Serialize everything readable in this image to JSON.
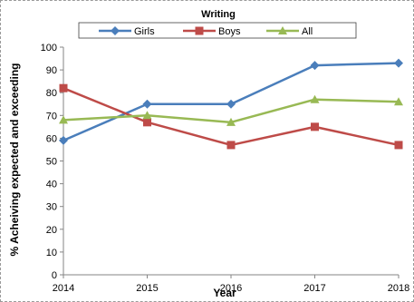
{
  "chart_data": {
    "type": "line",
    "title": "Writing",
    "xlabel": "Year",
    "ylabel": "% Acheiving expected and exceeding",
    "categories": [
      "2014",
      "2015",
      "2016",
      "2017",
      "2018"
    ],
    "ylim": [
      0,
      100
    ],
    "yticks": [
      "0",
      "10",
      "20",
      "30",
      "40",
      "50",
      "60",
      "70",
      "80",
      "90",
      "100"
    ],
    "grid": false,
    "legend_position": "top",
    "series": [
      {
        "name": "Girls",
        "color": "#4a7ebb",
        "marker": "diamond",
        "values": [
          59,
          75,
          75,
          92,
          93
        ]
      },
      {
        "name": "Boys",
        "color": "#be4b48",
        "marker": "square",
        "values": [
          82,
          67,
          57,
          65,
          57
        ]
      },
      {
        "name": "All",
        "color": "#98b954",
        "marker": "triangle",
        "values": [
          68,
          70,
          67,
          77,
          76
        ]
      }
    ]
  }
}
